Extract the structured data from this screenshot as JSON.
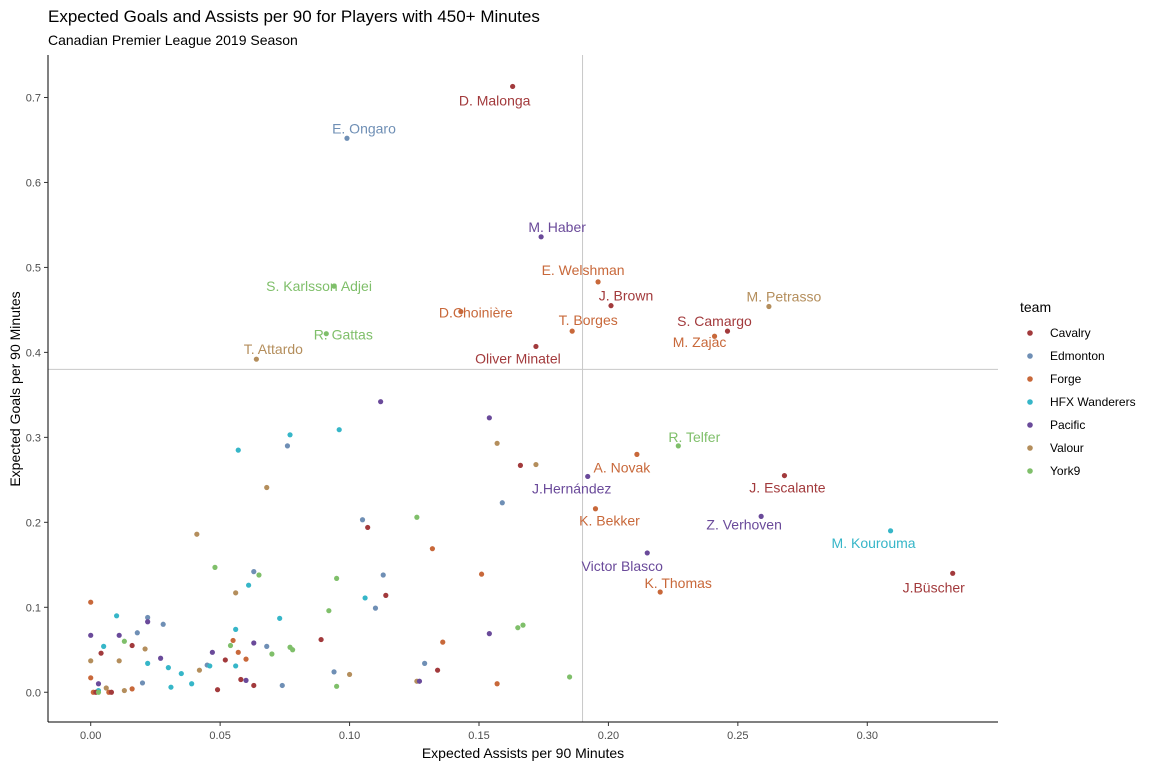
{
  "chart_data": {
    "type": "scatter",
    "title": "Expected Goals and Assists per 90 for Players with 450+ Minutes",
    "subtitle": "Canadian Premier League 2019 Season",
    "xlabel": "Expected Assists per 90 Minutes",
    "ylabel": "Expected Goals per 90 Minutes",
    "xlim": [
      -0.0165,
      0.3505
    ],
    "ylim": [
      -0.035,
      0.75
    ],
    "x_ticks": [
      0.0,
      0.05,
      0.1,
      0.15,
      0.2,
      0.25,
      0.3
    ],
    "x_tick_labels": [
      "0.00",
      "0.05",
      "0.10",
      "0.15",
      "0.20",
      "0.25",
      "0.30"
    ],
    "y_ticks": [
      0.0,
      0.1,
      0.2,
      0.3,
      0.4,
      0.5,
      0.6,
      0.7
    ],
    "y_tick_labels": [
      "0.0",
      "0.1",
      "0.2",
      "0.3",
      "0.4",
      "0.5",
      "0.6",
      "0.7"
    ],
    "reference_lines": {
      "x": 0.19,
      "y": 0.38
    },
    "grid": false,
    "legend": {
      "title": "team",
      "position": "right",
      "entries": [
        {
          "name": "Cavalry",
          "color": "#a23a3c"
        },
        {
          "name": "Edmonton",
          "color": "#6f8fb5"
        },
        {
          "name": "Forge",
          "color": "#c8683a"
        },
        {
          "name": "HFX Wanderers",
          "color": "#36b6c8"
        },
        {
          "name": "Pacific",
          "color": "#6a4a9a"
        },
        {
          "name": "Valour",
          "color": "#b48e5c"
        },
        {
          "name": "York9",
          "color": "#7fbf6a"
        }
      ]
    },
    "labeled_points": [
      {
        "label": "D. Malonga",
        "team": "Cavalry",
        "x": 0.163,
        "y": 0.713
      },
      {
        "label": "E. Ongaro",
        "team": "Edmonton",
        "x": 0.099,
        "y": 0.652
      },
      {
        "label": "M. Haber",
        "team": "Pacific",
        "x": 0.174,
        "y": 0.536
      },
      {
        "label": "E. Welshman",
        "team": "Forge",
        "x": 0.196,
        "y": 0.483
      },
      {
        "label": "S. Karlsson Adjei",
        "team": "York9",
        "x": 0.094,
        "y": 0.478
      },
      {
        "label": "D.Choinière",
        "team": "Forge",
        "x": 0.143,
        "y": 0.448
      },
      {
        "label": "J. Brown",
        "team": "Cavalry",
        "x": 0.201,
        "y": 0.455
      },
      {
        "label": "M. Petrasso",
        "team": "Valour",
        "x": 0.262,
        "y": 0.454
      },
      {
        "label": "R. Gattas",
        "team": "York9",
        "x": 0.091,
        "y": 0.422
      },
      {
        "label": "T. Borges",
        "team": "Forge",
        "x": 0.186,
        "y": 0.425
      },
      {
        "label": "S. Camargo",
        "team": "Cavalry",
        "x": 0.246,
        "y": 0.425
      },
      {
        "label": "M. Zajac",
        "team": "Forge",
        "x": 0.241,
        "y": 0.419
      },
      {
        "label": "T. Attardo",
        "team": "Valour",
        "x": 0.064,
        "y": 0.392
      },
      {
        "label": "Oliver Minatel",
        "team": "Cavalry",
        "x": 0.172,
        "y": 0.407
      },
      {
        "label": "R. Telfer",
        "team": "York9",
        "x": 0.227,
        "y": 0.29
      },
      {
        "label": "A. Novak",
        "team": "Forge",
        "x": 0.211,
        "y": 0.28
      },
      {
        "label": "J.Hernández",
        "team": "Pacific",
        "x": 0.192,
        "y": 0.254
      },
      {
        "label": "J. Escalante",
        "team": "Cavalry",
        "x": 0.268,
        "y": 0.255
      },
      {
        "label": "K. Bekker",
        "team": "Forge",
        "x": 0.195,
        "y": 0.216
      },
      {
        "label": "Z. Verhoven",
        "team": "Pacific",
        "x": 0.259,
        "y": 0.207
      },
      {
        "label": "M. Kourouma",
        "team": "HFX Wanderers",
        "x": 0.309,
        "y": 0.19
      },
      {
        "label": "Victor Blasco",
        "team": "Pacific",
        "x": 0.215,
        "y": 0.164
      },
      {
        "label": "K. Thomas",
        "team": "Forge",
        "x": 0.22,
        "y": 0.118
      },
      {
        "label": "J.Büscher",
        "team": "Cavalry",
        "x": 0.333,
        "y": 0.14
      }
    ],
    "points": [
      {
        "team": "Pacific",
        "x": 0.112,
        "y": 0.342
      },
      {
        "team": "Pacific",
        "x": 0.154,
        "y": 0.323
      },
      {
        "team": "HFX Wanderers",
        "x": 0.096,
        "y": 0.309
      },
      {
        "team": "HFX Wanderers",
        "x": 0.077,
        "y": 0.303
      },
      {
        "team": "Valour",
        "x": 0.157,
        "y": 0.293
      },
      {
        "team": "Edmonton",
        "x": 0.076,
        "y": 0.29
      },
      {
        "team": "HFX Wanderers",
        "x": 0.057,
        "y": 0.285
      },
      {
        "team": "Cavalry",
        "x": 0.166,
        "y": 0.267
      },
      {
        "team": "Valour",
        "x": 0.172,
        "y": 0.268
      },
      {
        "team": "Valour",
        "x": 0.068,
        "y": 0.241
      },
      {
        "team": "Edmonton",
        "x": 0.159,
        "y": 0.223
      },
      {
        "team": "York9",
        "x": 0.126,
        "y": 0.206
      },
      {
        "team": "Edmonton",
        "x": 0.105,
        "y": 0.203
      },
      {
        "team": "Cavalry",
        "x": 0.107,
        "y": 0.194
      },
      {
        "team": "Valour",
        "x": 0.041,
        "y": 0.186
      },
      {
        "team": "Forge",
        "x": 0.132,
        "y": 0.169
      },
      {
        "team": "York9",
        "x": 0.048,
        "y": 0.147
      },
      {
        "team": "Edmonton",
        "x": 0.063,
        "y": 0.142
      },
      {
        "team": "Forge",
        "x": 0.151,
        "y": 0.139
      },
      {
        "team": "York9",
        "x": 0.065,
        "y": 0.138
      },
      {
        "team": "Edmonton",
        "x": 0.113,
        "y": 0.138
      },
      {
        "team": "York9",
        "x": 0.095,
        "y": 0.134
      },
      {
        "team": "HFX Wanderers",
        "x": 0.061,
        "y": 0.126
      },
      {
        "team": "Valour",
        "x": 0.056,
        "y": 0.117
      },
      {
        "team": "Cavalry",
        "x": 0.114,
        "y": 0.114
      },
      {
        "team": "HFX Wanderers",
        "x": 0.106,
        "y": 0.111
      },
      {
        "team": "Forge",
        "x": 0.0,
        "y": 0.106
      },
      {
        "team": "Edmonton",
        "x": 0.11,
        "y": 0.099
      },
      {
        "team": "York9",
        "x": 0.092,
        "y": 0.096
      },
      {
        "team": "HFX Wanderers",
        "x": 0.01,
        "y": 0.09
      },
      {
        "team": "Edmonton",
        "x": 0.022,
        "y": 0.088
      },
      {
        "team": "HFX Wanderers",
        "x": 0.073,
        "y": 0.087
      },
      {
        "team": "Pacific",
        "x": 0.022,
        "y": 0.083
      },
      {
        "team": "Edmonton",
        "x": 0.028,
        "y": 0.08
      },
      {
        "team": "York9",
        "x": 0.167,
        "y": 0.079
      },
      {
        "team": "York9",
        "x": 0.165,
        "y": 0.076
      },
      {
        "team": "HFX Wanderers",
        "x": 0.056,
        "y": 0.074
      },
      {
        "team": "Edmonton",
        "x": 0.018,
        "y": 0.07
      },
      {
        "team": "Pacific",
        "x": 0.154,
        "y": 0.069
      },
      {
        "team": "Pacific",
        "x": 0.0,
        "y": 0.067
      },
      {
        "team": "Pacific",
        "x": 0.011,
        "y": 0.067
      },
      {
        "team": "Cavalry",
        "x": 0.089,
        "y": 0.062
      },
      {
        "team": "Forge",
        "x": 0.055,
        "y": 0.061
      },
      {
        "team": "York9",
        "x": 0.013,
        "y": 0.06
      },
      {
        "team": "Forge",
        "x": 0.136,
        "y": 0.059
      },
      {
        "team": "Pacific",
        "x": 0.063,
        "y": 0.058
      },
      {
        "team": "Cavalry",
        "x": 0.016,
        "y": 0.055
      },
      {
        "team": "York9",
        "x": 0.054,
        "y": 0.055
      },
      {
        "team": "HFX Wanderers",
        "x": 0.005,
        "y": 0.054
      },
      {
        "team": "Edmonton",
        "x": 0.068,
        "y": 0.054
      },
      {
        "team": "York9",
        "x": 0.077,
        "y": 0.053
      },
      {
        "team": "Valour",
        "x": 0.021,
        "y": 0.051
      },
      {
        "team": "York9",
        "x": 0.078,
        "y": 0.05
      },
      {
        "team": "Pacific",
        "x": 0.047,
        "y": 0.047
      },
      {
        "team": "Forge",
        "x": 0.057,
        "y": 0.047
      },
      {
        "team": "Cavalry",
        "x": 0.004,
        "y": 0.046
      },
      {
        "team": "York9",
        "x": 0.07,
        "y": 0.045
      },
      {
        "team": "Pacific",
        "x": 0.027,
        "y": 0.04
      },
      {
        "team": "Forge",
        "x": 0.06,
        "y": 0.039
      },
      {
        "team": "Cavalry",
        "x": 0.052,
        "y": 0.038
      },
      {
        "team": "Valour",
        "x": 0.0,
        "y": 0.037
      },
      {
        "team": "Valour",
        "x": 0.011,
        "y": 0.037
      },
      {
        "team": "HFX Wanderers",
        "x": 0.022,
        "y": 0.034
      },
      {
        "team": "Edmonton",
        "x": 0.129,
        "y": 0.034
      },
      {
        "team": "Edmonton",
        "x": 0.045,
        "y": 0.032
      },
      {
        "team": "HFX Wanderers",
        "x": 0.046,
        "y": 0.031
      },
      {
        "team": "HFX Wanderers",
        "x": 0.056,
        "y": 0.031
      },
      {
        "team": "HFX Wanderers",
        "x": 0.03,
        "y": 0.029
      },
      {
        "team": "Valour",
        "x": 0.042,
        "y": 0.026
      },
      {
        "team": "Cavalry",
        "x": 0.134,
        "y": 0.026
      },
      {
        "team": "Edmonton",
        "x": 0.094,
        "y": 0.024
      },
      {
        "team": "HFX Wanderers",
        "x": 0.035,
        "y": 0.022
      },
      {
        "team": "Valour",
        "x": 0.1,
        "y": 0.021
      },
      {
        "team": "York9",
        "x": 0.185,
        "y": 0.018
      },
      {
        "team": "Forge",
        "x": 0.0,
        "y": 0.017
      },
      {
        "team": "Cavalry",
        "x": 0.058,
        "y": 0.015
      },
      {
        "team": "Pacific",
        "x": 0.06,
        "y": 0.014
      },
      {
        "team": "Valour",
        "x": 0.126,
        "y": 0.013
      },
      {
        "team": "Pacific",
        "x": 0.127,
        "y": 0.013
      },
      {
        "team": "Edmonton",
        "x": 0.02,
        "y": 0.011
      },
      {
        "team": "Pacific",
        "x": 0.003,
        "y": 0.01
      },
      {
        "team": "HFX Wanderers",
        "x": 0.039,
        "y": 0.01
      },
      {
        "team": "Forge",
        "x": 0.157,
        "y": 0.01
      },
      {
        "team": "Cavalry",
        "x": 0.063,
        "y": 0.008
      },
      {
        "team": "Edmonton",
        "x": 0.074,
        "y": 0.008
      },
      {
        "team": "York9",
        "x": 0.095,
        "y": 0.007
      },
      {
        "team": "HFX Wanderers",
        "x": 0.031,
        "y": 0.006
      },
      {
        "team": "Valour",
        "x": 0.006,
        "y": 0.005
      },
      {
        "team": "Forge",
        "x": 0.016,
        "y": 0.004
      },
      {
        "team": "Cavalry",
        "x": 0.049,
        "y": 0.003
      },
      {
        "team": "HFX Wanderers",
        "x": 0.003,
        "y": 0.002
      },
      {
        "team": "Valour",
        "x": 0.013,
        "y": 0.002
      },
      {
        "team": "Forge",
        "x": 0.001,
        "y": 0.0
      },
      {
        "team": "Cavalry",
        "x": 0.002,
        "y": 0.0
      },
      {
        "team": "Forge",
        "x": 0.007,
        "y": 0.0
      },
      {
        "team": "Cavalry",
        "x": 0.008,
        "y": 0.0
      },
      {
        "team": "York9",
        "x": 0.003,
        "y": 0.0
      }
    ]
  }
}
